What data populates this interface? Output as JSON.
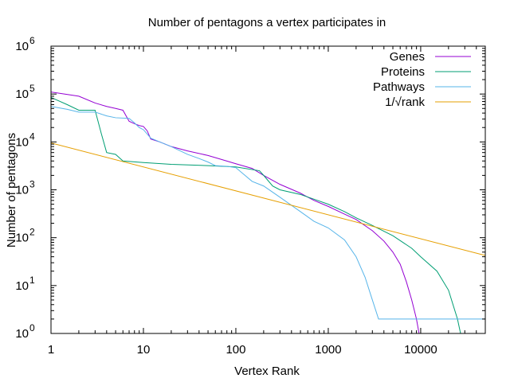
{
  "chart_data": {
    "type": "line",
    "title": "Number of pentagons a vertex participates in",
    "xlabel": "Vertex Rank",
    "ylabel": "Number of pentagons",
    "xscale": "log",
    "yscale": "log",
    "xlim": [
      1,
      50000
    ],
    "ylim": [
      1,
      1000000
    ],
    "x_ticks": [
      {
        "value": 1,
        "label": "1"
      },
      {
        "value": 10,
        "label": "10"
      },
      {
        "value": 100,
        "label": "100"
      },
      {
        "value": 1000,
        "label": "1000"
      },
      {
        "value": 10000,
        "label": "10000"
      }
    ],
    "y_ticks": [
      {
        "value": 1,
        "base": "10",
        "exp": "0"
      },
      {
        "value": 10,
        "base": "10",
        "exp": "1"
      },
      {
        "value": 100,
        "base": "10",
        "exp": "2"
      },
      {
        "value": 1000,
        "base": "10",
        "exp": "3"
      },
      {
        "value": 10000,
        "base": "10",
        "exp": "4"
      },
      {
        "value": 100000,
        "base": "10",
        "exp": "5"
      },
      {
        "value": 1000000,
        "base": "10",
        "exp": "6"
      }
    ],
    "legend_position": "top-right",
    "grid": false,
    "series": [
      {
        "name": "Genes",
        "color": "#9400d3",
        "points": [
          [
            1,
            110000
          ],
          [
            2,
            90000
          ],
          [
            3,
            65000
          ],
          [
            4,
            55000
          ],
          [
            5,
            50000
          ],
          [
            6,
            46000
          ],
          [
            7,
            27000
          ],
          [
            8,
            24000
          ],
          [
            9,
            22000
          ],
          [
            10,
            21000
          ],
          [
            11,
            17000
          ],
          [
            12,
            11500
          ],
          [
            15,
            10000
          ],
          [
            20,
            8000
          ],
          [
            30,
            6500
          ],
          [
            50,
            5200
          ],
          [
            70,
            4300
          ],
          [
            100,
            3500
          ],
          [
            150,
            2800
          ],
          [
            200,
            2000
          ],
          [
            300,
            1300
          ],
          [
            500,
            850
          ],
          [
            700,
            600
          ],
          [
            1000,
            450
          ],
          [
            1500,
            310
          ],
          [
            2000,
            240
          ],
          [
            3000,
            140
          ],
          [
            4000,
            85
          ],
          [
            5000,
            50
          ],
          [
            6000,
            28
          ],
          [
            7000,
            12
          ],
          [
            8000,
            5
          ],
          [
            9000,
            2
          ],
          [
            9600,
            1
          ]
        ]
      },
      {
        "name": "Proteins",
        "color": "#009e73",
        "points": [
          [
            1,
            85000
          ],
          [
            1.5,
            60000
          ],
          [
            2,
            46000
          ],
          [
            3,
            46000
          ],
          [
            3.5,
            15000
          ],
          [
            4,
            6000
          ],
          [
            5,
            5500
          ],
          [
            6,
            4000
          ],
          [
            10,
            3700
          ],
          [
            20,
            3400
          ],
          [
            50,
            3200
          ],
          [
            100,
            3000
          ],
          [
            180,
            2500
          ],
          [
            200,
            2000
          ],
          [
            250,
            1200
          ],
          [
            300,
            1000
          ],
          [
            500,
            800
          ],
          [
            1000,
            500
          ],
          [
            1500,
            350
          ],
          [
            2000,
            260
          ],
          [
            3000,
            180
          ],
          [
            5000,
            110
          ],
          [
            8000,
            60
          ],
          [
            10000,
            40
          ],
          [
            15000,
            20
          ],
          [
            20000,
            8
          ],
          [
            25000,
            2
          ],
          [
            27000,
            1
          ]
        ]
      },
      {
        "name": "Pathways",
        "color": "#56b4e9",
        "points": [
          [
            1,
            55000
          ],
          [
            1.5,
            48000
          ],
          [
            2,
            42000
          ],
          [
            3,
            42000
          ],
          [
            4,
            35000
          ],
          [
            5,
            32000
          ],
          [
            7,
            31000
          ],
          [
            8,
            25000
          ],
          [
            9,
            20000
          ],
          [
            10,
            18000
          ],
          [
            12,
            12000
          ],
          [
            15,
            10000
          ],
          [
            20,
            8000
          ],
          [
            30,
            5500
          ],
          [
            40,
            4500
          ],
          [
            50,
            3800
          ],
          [
            60,
            3200
          ],
          [
            80,
            3100
          ],
          [
            100,
            2900
          ],
          [
            150,
            1500
          ],
          [
            200,
            1200
          ],
          [
            300,
            700
          ],
          [
            500,
            350
          ],
          [
            700,
            220
          ],
          [
            1000,
            160
          ],
          [
            1500,
            90
          ],
          [
            2000,
            40
          ],
          [
            2500,
            15
          ],
          [
            3000,
            5
          ],
          [
            3500,
            2
          ],
          [
            3600,
            2
          ],
          [
            50000,
            2
          ]
        ]
      },
      {
        "name": "1/√rank",
        "color": "#e69f00",
        "points": [
          [
            1,
            9500
          ],
          [
            50000,
            42.5
          ]
        ]
      }
    ]
  }
}
